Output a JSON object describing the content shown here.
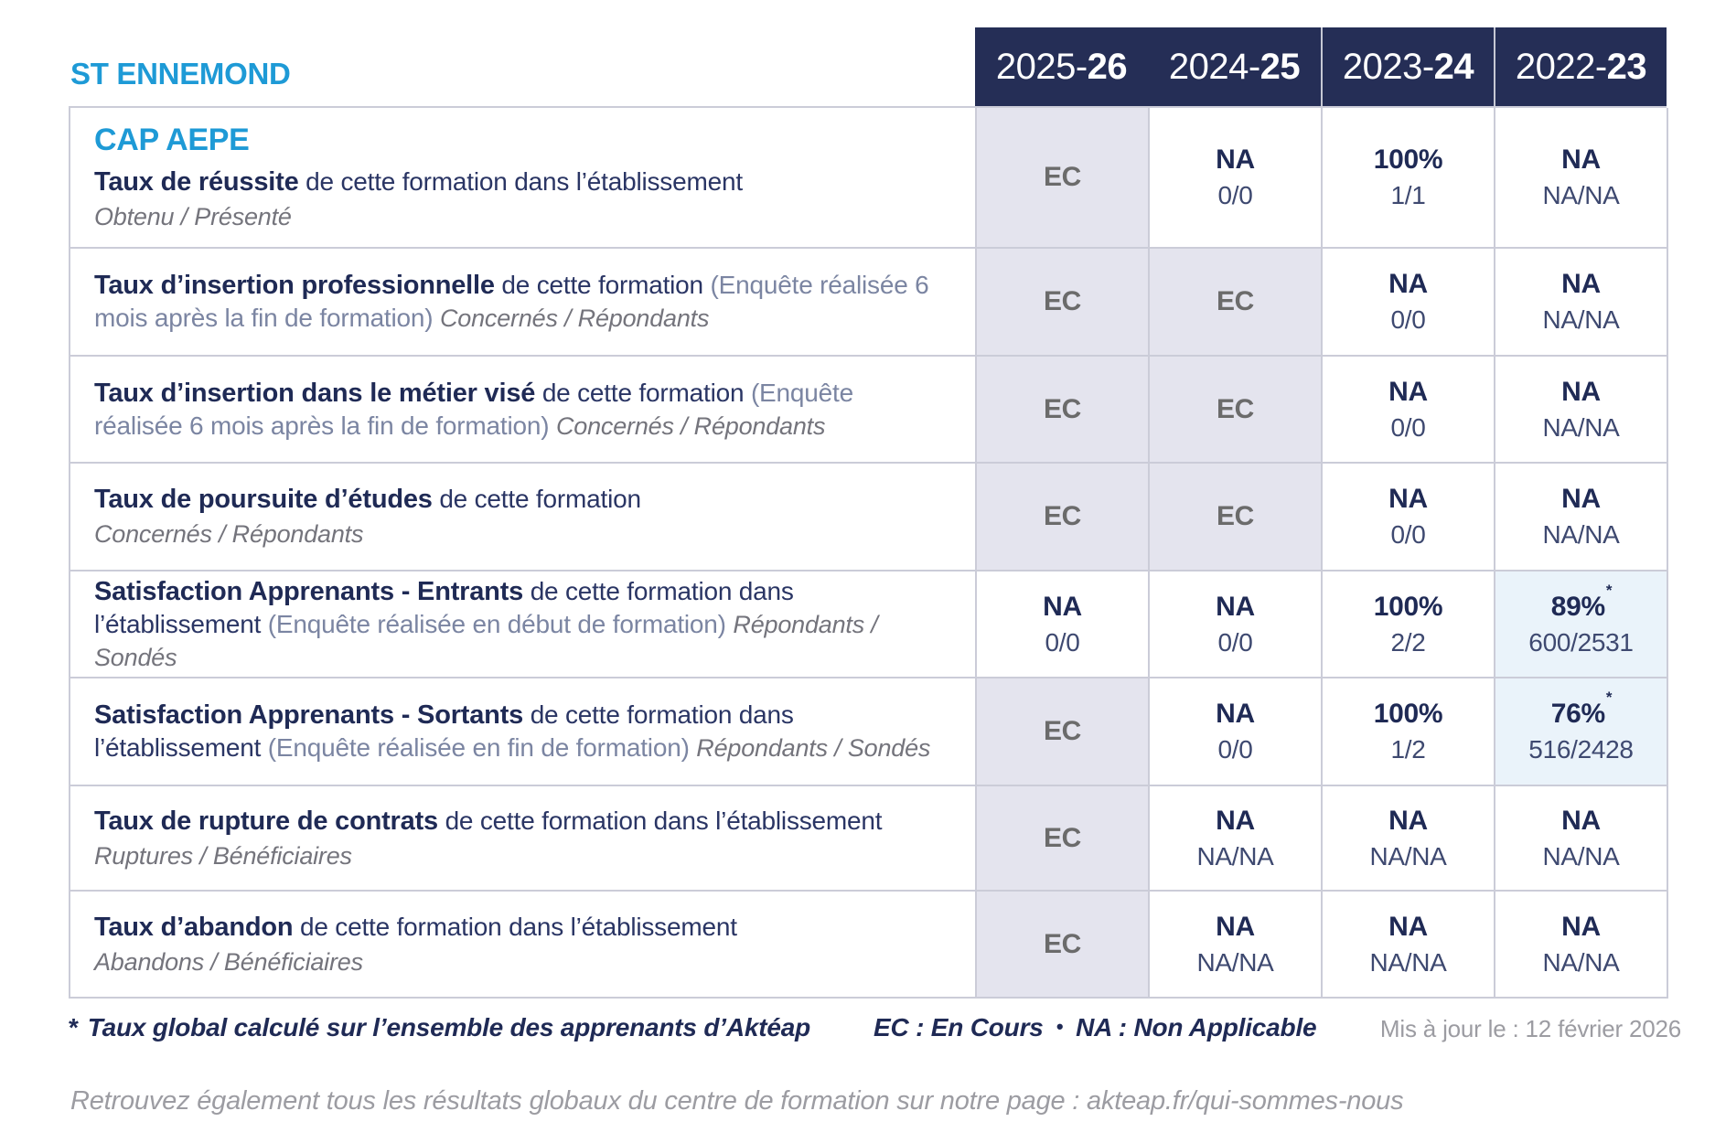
{
  "brand": "ST ENNEMOND",
  "course": "CAP AEPE",
  "colors": {
    "accent_blue": "#1E9AD6",
    "header_navy": "#252E56",
    "ec_cell_bg": "#E4E4EE",
    "global_rate_cell_bg": "#EAF3FA",
    "grid_line": "#CBCCD8"
  },
  "header": {
    "years": [
      {
        "prefix": "2025-",
        "bold": "26"
      },
      {
        "prefix": "2024-",
        "bold": "25"
      },
      {
        "prefix": "2023-",
        "bold": "24"
      },
      {
        "prefix": "2022-",
        "bold": "23"
      }
    ]
  },
  "rows": [
    {
      "title_bold": "Taux de réussite",
      "title_rest": "de cette formation dans l’établissement",
      "paren": "",
      "sub": "Obtenu / Présenté",
      "layout": "stacked",
      "cells": [
        {
          "main": "EC",
          "sub": "",
          "variant": "ec"
        },
        {
          "main": "NA",
          "sub": "0/0",
          "variant": "plain"
        },
        {
          "main": "100%",
          "sub": "1/1",
          "variant": "plain"
        },
        {
          "main": "NA",
          "sub": "NA/NA",
          "variant": "plain"
        }
      ]
    },
    {
      "title_bold": "Taux d’insertion professionnelle",
      "title_rest": "de cette formation",
      "paren": "(Enquête réalisée 6 mois après la fin de formation)",
      "sub": "Concernés / Répondants",
      "layout": "inline",
      "cells": [
        {
          "main": "EC",
          "sub": "",
          "variant": "ec"
        },
        {
          "main": "EC",
          "sub": "",
          "variant": "ec"
        },
        {
          "main": "NA",
          "sub": "0/0",
          "variant": "plain"
        },
        {
          "main": "NA",
          "sub": "NA/NA",
          "variant": "plain"
        }
      ]
    },
    {
      "title_bold": "Taux d’insertion dans le métier visé",
      "title_rest": "de cette formation",
      "paren": "(Enquête réalisée 6 mois après la fin de formation)",
      "sub": "Concernés / Répondants",
      "layout": "inline",
      "cells": [
        {
          "main": "EC",
          "sub": "",
          "variant": "ec"
        },
        {
          "main": "EC",
          "sub": "",
          "variant": "ec"
        },
        {
          "main": "NA",
          "sub": "0/0",
          "variant": "plain"
        },
        {
          "main": "NA",
          "sub": "NA/NA",
          "variant": "plain"
        }
      ]
    },
    {
      "title_bold": "Taux de poursuite d’études",
      "title_rest": "de cette formation",
      "paren": "",
      "sub": "Concernés / Répondants",
      "layout": "stacked",
      "cells": [
        {
          "main": "EC",
          "sub": "",
          "variant": "ec"
        },
        {
          "main": "EC",
          "sub": "",
          "variant": "ec"
        },
        {
          "main": "NA",
          "sub": "0/0",
          "variant": "plain"
        },
        {
          "main": "NA",
          "sub": "NA/NA",
          "variant": "plain"
        }
      ]
    },
    {
      "title_bold": "Satisfaction Apprenants - Entrants",
      "title_rest": "de cette formation dans l’établissement",
      "paren": "(Enquête réalisée en début de formation)",
      "sub": "Répondants / Sondés",
      "layout": "inline",
      "cells": [
        {
          "main": "NA",
          "sub": "0/0",
          "variant": "plain"
        },
        {
          "main": "NA",
          "sub": "0/0",
          "variant": "plain"
        },
        {
          "main": "100%",
          "sub": "2/2",
          "variant": "plain"
        },
        {
          "main": "89%",
          "sup": "*",
          "sub": "600/2531",
          "variant": "star"
        }
      ]
    },
    {
      "title_bold": "Satisfaction Apprenants - Sortants",
      "title_rest": "de cette formation dans l’établissement",
      "paren": "(Enquête réalisée en fin de formation)",
      "sub": "Répondants / Sondés",
      "layout": "inline",
      "cells": [
        {
          "main": "EC",
          "sub": "",
          "variant": "ec"
        },
        {
          "main": "NA",
          "sub": "0/0",
          "variant": "plain"
        },
        {
          "main": "100%",
          "sub": "1/2",
          "variant": "plain"
        },
        {
          "main": "76%",
          "sup": "*",
          "sub": "516/2428",
          "variant": "star"
        }
      ]
    },
    {
      "title_bold": "Taux de rupture de contrats",
      "title_rest": "de cette formation dans l’établissement",
      "paren": "",
      "sub": "Ruptures / Bénéficiaires",
      "layout": "stacked",
      "cells": [
        {
          "main": "EC",
          "sub": "",
          "variant": "ec"
        },
        {
          "main": "NA",
          "sub": "NA/NA",
          "variant": "plain"
        },
        {
          "main": "NA",
          "sub": "NA/NA",
          "variant": "plain"
        },
        {
          "main": "NA",
          "sub": "NA/NA",
          "variant": "plain"
        }
      ]
    },
    {
      "title_bold": "Taux d’abandon",
      "title_rest": "de cette formation dans l’établissement",
      "paren": "",
      "sub": "Abandons / Bénéficiaires",
      "layout": "stacked",
      "cells": [
        {
          "main": "EC",
          "sub": "",
          "variant": "ec"
        },
        {
          "main": "NA",
          "sub": "NA/NA",
          "variant": "plain"
        },
        {
          "main": "NA",
          "sub": "NA/NA",
          "variant": "plain"
        },
        {
          "main": "NA",
          "sub": "NA/NA",
          "variant": "plain"
        }
      ]
    }
  ],
  "footer": {
    "footnote_star": "*",
    "footnote": "Taux global calculé sur l’ensemble des apprenants d’Aktéap",
    "legend_ec": "EC : En Cours",
    "legend_bullet": "•",
    "legend_na": "NA : Non Applicable",
    "updated": "Mis à jour le : 12 février 2026"
  },
  "bottom_note": "Retrouvez également tous les résultats globaux du centre de formation sur notre page : akteap.fr/qui-sommes-nous"
}
